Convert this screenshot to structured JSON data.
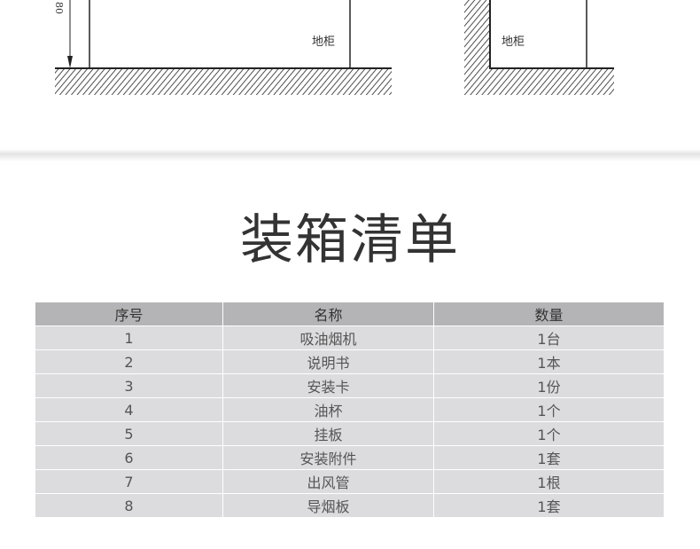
{
  "diagram": {
    "dimension_label": "80",
    "left_label": "地柜",
    "right_label": "地柜"
  },
  "title": "装箱清单",
  "table": {
    "headers": [
      "序号",
      "名称",
      "数量"
    ],
    "rows": [
      [
        "1",
        "吸油烟机",
        "1台"
      ],
      [
        "2",
        "说明书",
        "1本"
      ],
      [
        "3",
        "安装卡",
        "1份"
      ],
      [
        "4",
        "油杯",
        "1个"
      ],
      [
        "5",
        "挂板",
        "1个"
      ],
      [
        "6",
        "安装附件",
        "1套"
      ],
      [
        "7",
        "出风管",
        "1根"
      ],
      [
        "8",
        "导烟板",
        "1套"
      ]
    ]
  }
}
